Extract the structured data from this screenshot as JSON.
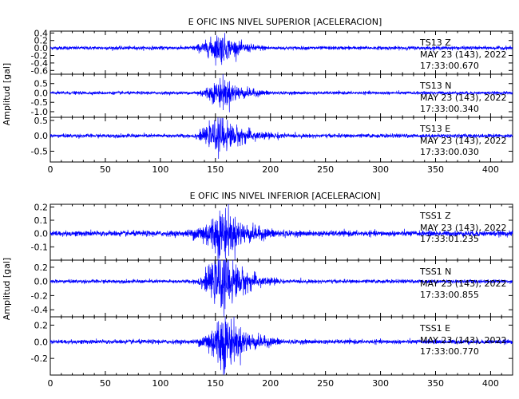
{
  "chart_data": [
    {
      "type": "line",
      "title": "E OFIC INS NIVEL SUPERIOR [ACELERACION]",
      "ylabel": "Amplitud [gal]",
      "xlim": [
        0,
        420
      ],
      "xticks": [
        0,
        50,
        100,
        150,
        200,
        250,
        300,
        350,
        400
      ],
      "trace_color": "#0000ff",
      "panels": [
        {
          "station": "TS13 Z",
          "date": "MAY 23 (143), 2022",
          "time": "17:33:00.670",
          "ylim": [
            -0.7,
            0.45
          ],
          "yticks": [
            0.4,
            0.2,
            0.0,
            -0.2,
            -0.4,
            -0.6
          ],
          "ytick_labels": [
            "0.4",
            "0.2",
            "0.0",
            "-0.2",
            "-0.4",
            "-0.6"
          ],
          "envelope": {
            "noise": 0.045,
            "peak": 0.42,
            "peak_center": 155,
            "onset": 125,
            "decay_end": 200
          }
        },
        {
          "station": "TS13 N",
          "date": "MAY 23 (143), 2022",
          "time": "17:33:00.340",
          "ylim": [
            -1.3,
            1.0
          ],
          "yticks": [
            0.5,
            0.0,
            -0.5,
            -1.0
          ],
          "ytick_labels": [
            "0.5",
            "0.0",
            "-0.5",
            "-1.0"
          ],
          "envelope": {
            "noise": 0.08,
            "peak": 0.85,
            "peak_center": 157,
            "onset": 128,
            "decay_end": 205
          }
        },
        {
          "station": "TS13 E",
          "date": "MAY 23 (143), 2022",
          "time": "17:33:00.030",
          "ylim": [
            -0.85,
            0.6
          ],
          "yticks": [
            0.5,
            0.0,
            -0.5
          ],
          "ytick_labels": [
            "0.5",
            "0.0",
            "-0.5"
          ],
          "envelope": {
            "noise": 0.06,
            "peak": 0.6,
            "peak_center": 155,
            "onset": 127,
            "decay_end": 215
          }
        }
      ]
    },
    {
      "type": "line",
      "title": "E OFIC INS NIVEL INFERIOR [ACELERACION]",
      "ylabel": "Amplitud [gal]",
      "xlim": [
        0,
        420
      ],
      "xticks": [
        0,
        50,
        100,
        150,
        200,
        250,
        300,
        350,
        400
      ],
      "trace_color": "#0000ff",
      "panels": [
        {
          "station": "TSS1 Z",
          "date": "MAY 23 (143), 2022",
          "time": "17:33:01.235",
          "ylim": [
            -0.2,
            0.22
          ],
          "yticks": [
            0.2,
            0.1,
            0.0,
            -0.1
          ],
          "ytick_labels": [
            "0.2",
            "0.1",
            "0.0",
            "-0.1"
          ],
          "envelope": {
            "noise": 0.02,
            "peak": 0.2,
            "peak_center": 157,
            "onset": 120,
            "decay_end": 215
          }
        },
        {
          "station": "TSS1 N",
          "date": "MAY 23 (143), 2022",
          "time": "17:33:00.855",
          "ylim": [
            -0.5,
            0.3
          ],
          "yticks": [
            0.2,
            0.0,
            -0.2,
            -0.4
          ],
          "ytick_labels": [
            "0.2",
            "0.0",
            "-0.2",
            "-0.4"
          ],
          "envelope": {
            "noise": 0.025,
            "peak": 0.45,
            "peak_center": 158,
            "onset": 128,
            "decay_end": 210
          }
        },
        {
          "station": "TSS1 E",
          "date": "MAY 23 (143), 2022",
          "time": "17:33:00.770",
          "ylim": [
            -0.4,
            0.3
          ],
          "yticks": [
            0.2,
            0.0,
            -0.2
          ],
          "ytick_labels": [
            "0.2",
            "0.0",
            "-0.2"
          ],
          "envelope": {
            "noise": 0.025,
            "peak": 0.38,
            "peak_center": 157,
            "onset": 130,
            "decay_end": 212
          }
        }
      ]
    }
  ]
}
